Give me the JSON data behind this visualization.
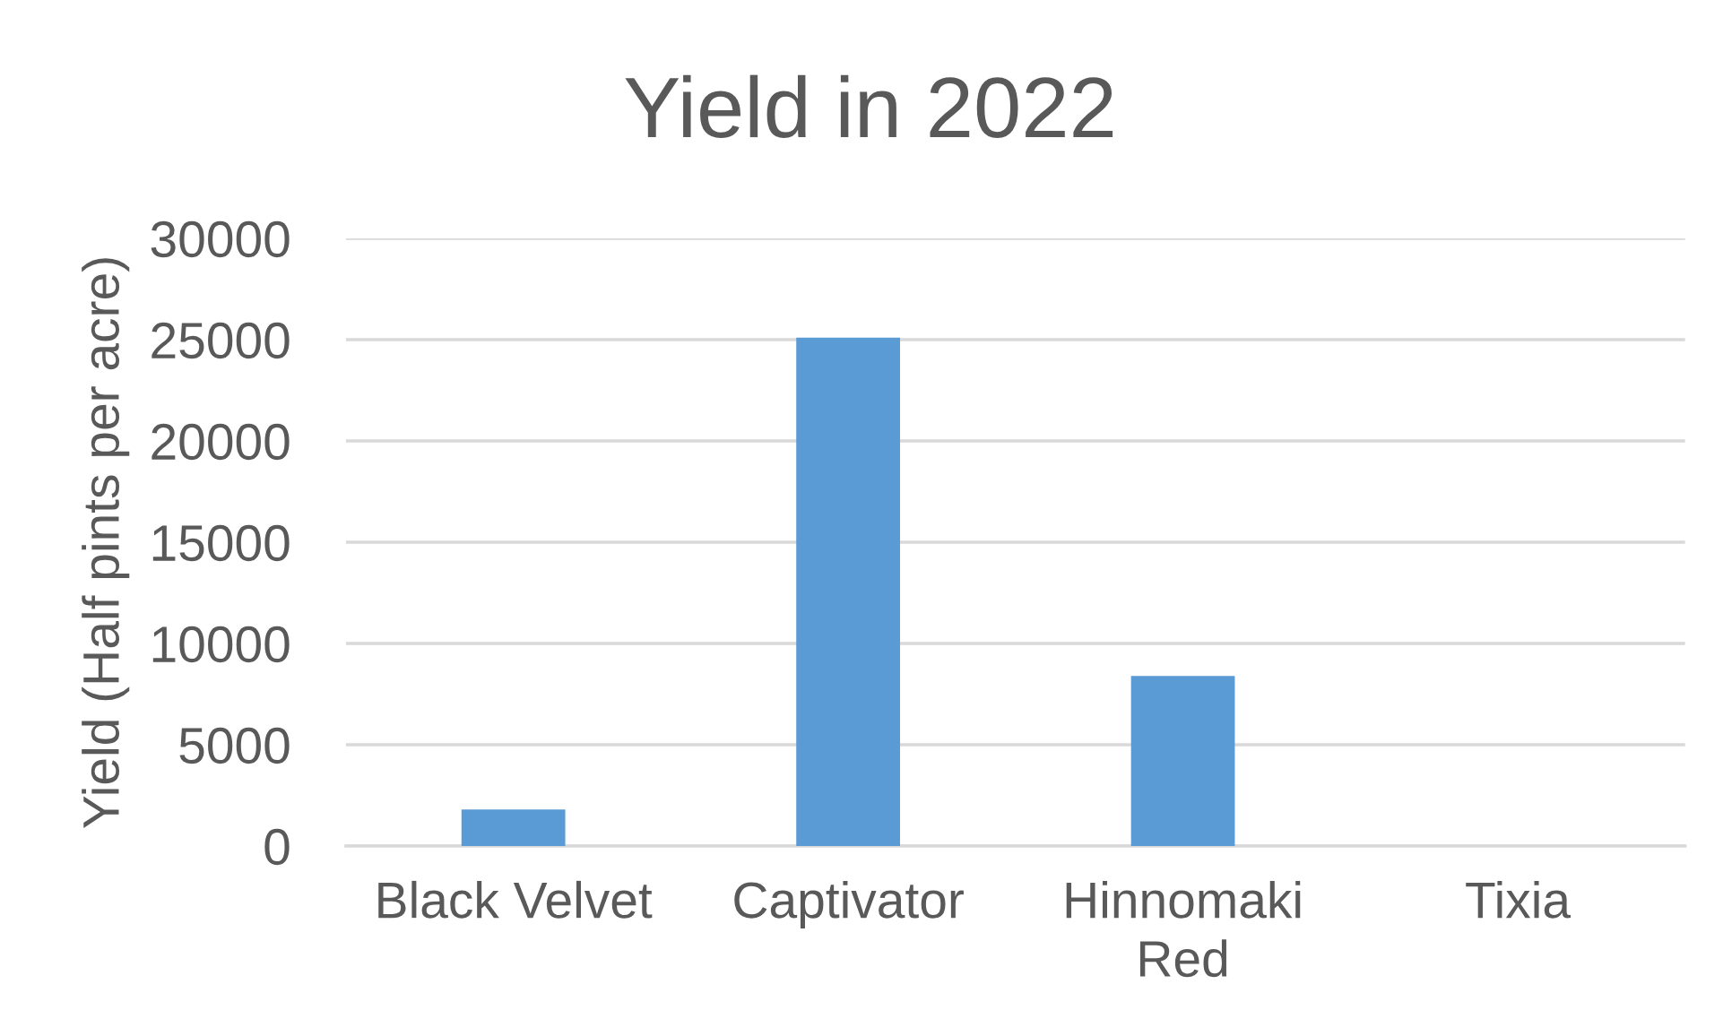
{
  "chart_data": {
    "type": "bar",
    "title": "Yield in 2022",
    "ylabel": "Yield (Half pints per acre)",
    "categories": [
      "Black Velvet",
      "Captivator",
      "Hinnomaki Red",
      "Tixia"
    ],
    "values": [
      1800,
      25100,
      8400,
      0
    ],
    "color": "#5b9bd5",
    "ylim": [
      0,
      30000
    ],
    "yticks": [
      0,
      5000,
      10000,
      15000,
      20000,
      25000,
      30000
    ],
    "grid": "y"
  }
}
